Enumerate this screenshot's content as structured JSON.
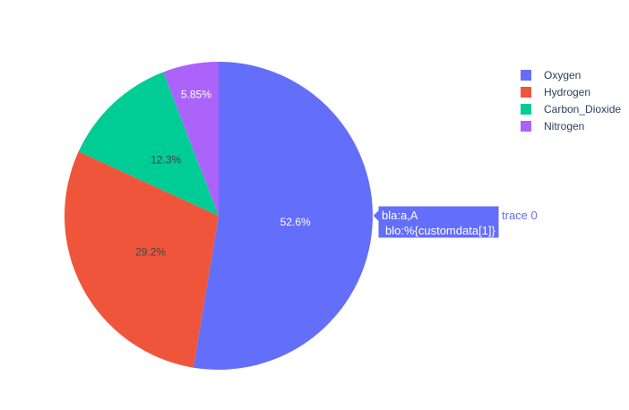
{
  "chart_data": {
    "type": "pie",
    "labels": [
      "Oxygen",
      "Hydrogen",
      "Carbon_Dioxide",
      "Nitrogen"
    ],
    "values": [
      4500,
      2500,
      1053,
      500
    ],
    "percent_labels": [
      "52.6%",
      "29.2%",
      "12.3%",
      "5.85%"
    ],
    "colors": [
      "#636efa",
      "#EF553B",
      "#00cc96",
      "#ab63fa"
    ],
    "legend_position": "top-right",
    "hover": {
      "slice": "Oxygen",
      "lines": [
        "bla:a,A",
        "blo:%{customdata[1]}"
      ],
      "trace_name": "trace 0"
    }
  }
}
